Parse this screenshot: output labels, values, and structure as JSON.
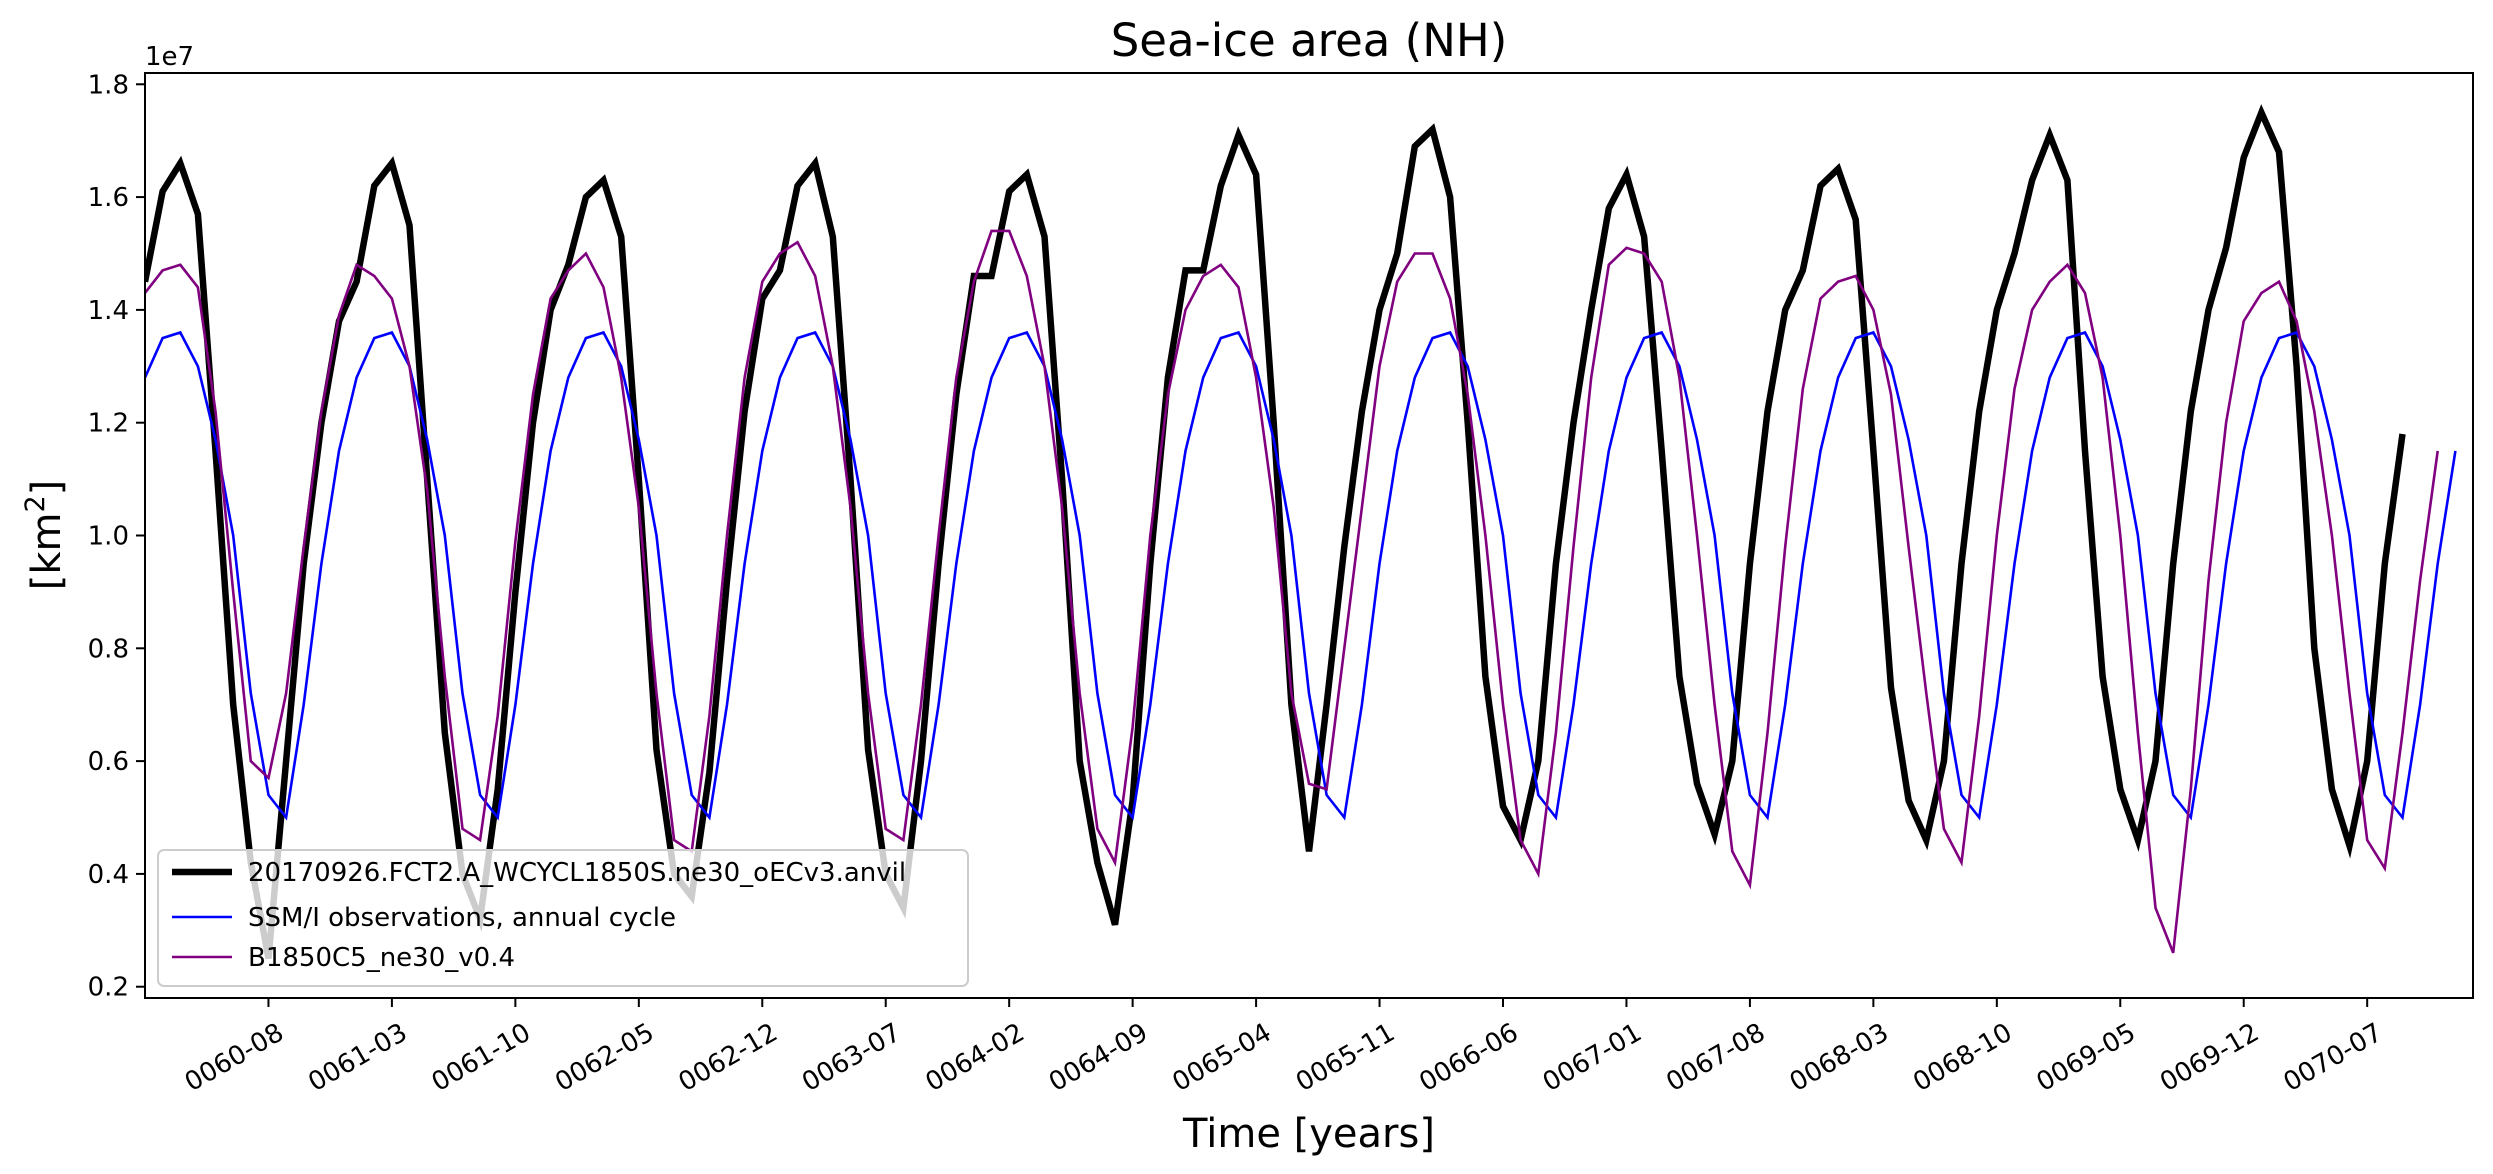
{
  "chart_data": {
    "type": "line",
    "title": "Sea-ice area (NH)",
    "xlabel": "Time [years]",
    "ylabel_main": "[km",
    "ylabel_sup": "2",
    "ylabel_close": "]",
    "offset_text": "1e7",
    "ylim": [
      0.18,
      1.82
    ],
    "y_ticks": [
      0.2,
      0.4,
      0.6,
      0.8,
      1.0,
      1.2,
      1.4,
      1.6,
      1.8
    ],
    "y_tick_labels": [
      "0.2",
      "0.4",
      "0.6",
      "0.8",
      "1.0",
      "1.2",
      "1.4",
      "1.6",
      "1.8"
    ],
    "x_start": "0060-01",
    "x_end": "0070-12",
    "x_ticks": [
      "0060-08",
      "0061-03",
      "0061-10",
      "0062-05",
      "0062-12",
      "0063-07",
      "0064-02",
      "0064-09",
      "0065-04",
      "0065-11",
      "0066-06",
      "0067-01",
      "0067-08",
      "0068-03",
      "0068-10",
      "0069-05",
      "0069-12",
      "0070-07"
    ],
    "grid": false,
    "legend_position": "lower left",
    "series": [
      {
        "name": "20170926.FCT2.A_WCYCL1850S.ne30_oECv3.anvil",
        "color": "#000000",
        "width": 6.5,
        "values": [
          [
            1.45,
            1.61,
            1.66,
            1.57,
            1.15,
            0.7,
            0.42,
            0.25,
            0.6,
            0.95,
            1.2,
            1.38
          ],
          [
            1.45,
            1.62,
            1.66,
            1.55,
            1.1,
            0.65,
            0.4,
            0.32,
            0.55,
            0.9,
            1.2,
            1.4
          ],
          [
            1.48,
            1.6,
            1.63,
            1.53,
            1.1,
            0.62,
            0.4,
            0.36,
            0.58,
            0.92,
            1.22,
            1.42
          ],
          [
            1.47,
            1.62,
            1.66,
            1.53,
            1.1,
            0.62,
            0.4,
            0.34,
            0.6,
            0.95,
            1.25,
            1.46
          ],
          [
            1.46,
            1.61,
            1.64,
            1.53,
            1.1,
            0.6,
            0.42,
            0.31,
            0.53,
            0.95,
            1.28,
            1.47
          ],
          [
            1.47,
            1.62,
            1.71,
            1.64,
            1.2,
            0.7,
            0.44,
            0.7,
            0.98,
            1.22,
            1.4,
            1.5
          ],
          [
            1.69,
            1.72,
            1.6,
            1.2,
            0.75,
            0.52,
            0.46,
            0.6,
            0.95,
            1.2,
            1.4,
            1.58
          ],
          [
            1.64,
            1.53,
            1.15,
            0.75,
            0.56,
            0.47,
            0.6,
            0.95,
            1.22,
            1.4,
            1.47,
            1.62
          ],
          [
            1.65,
            1.56,
            1.15,
            0.73,
            0.53,
            0.46,
            0.6,
            0.95,
            1.22,
            1.4,
            1.5,
            1.63
          ],
          [
            1.71,
            1.63,
            1.15,
            0.75,
            0.55,
            0.46,
            0.6,
            0.95,
            1.22,
            1.4,
            1.51,
            1.67
          ],
          [
            1.75,
            1.68,
            1.3,
            0.8,
            0.55,
            0.45,
            0.6,
            0.95,
            1.18
          ]
        ]
      },
      {
        "name": "SSM/I observations, annual cycle",
        "color": "#0000ff",
        "width": 2.6,
        "cycle": [
          1.28,
          1.35,
          1.36,
          1.3,
          1.17,
          1.0,
          0.72,
          0.54,
          0.5,
          0.7,
          0.95,
          1.15
        ]
      },
      {
        "name": "B1850C5_ne30_v0.4",
        "color": "#800080",
        "width": 2.6,
        "values": [
          [
            1.43,
            1.47,
            1.48,
            1.44,
            1.22,
            0.9,
            0.6,
            0.57,
            0.72,
            0.98,
            1.22,
            1.39
          ],
          [
            1.48,
            1.46,
            1.42,
            1.3,
            1.08,
            0.75,
            0.48,
            0.46,
            0.68,
            0.99,
            1.25,
            1.42
          ],
          [
            1.47,
            1.5,
            1.44,
            1.28,
            1.05,
            0.72,
            0.46,
            0.44,
            0.68,
            1.0,
            1.28,
            1.45
          ],
          [
            1.5,
            1.52,
            1.46,
            1.3,
            1.05,
            0.72,
            0.48,
            0.46,
            0.7,
            1.0,
            1.28,
            1.45
          ],
          [
            1.54,
            1.54,
            1.46,
            1.3,
            1.05,
            0.72,
            0.48,
            0.42,
            0.66,
            1.0,
            1.25,
            1.4
          ],
          [
            1.46,
            1.48,
            1.44,
            1.28,
            1.05,
            0.72,
            0.56,
            0.55,
            0.8,
            1.05,
            1.3,
            1.45
          ],
          [
            1.5,
            1.5,
            1.42,
            1.25,
            1.0,
            0.7,
            0.46,
            0.4,
            0.65,
            0.98,
            1.28,
            1.48
          ],
          [
            1.51,
            1.5,
            1.45,
            1.28,
            1.0,
            0.7,
            0.44,
            0.38,
            0.65,
            0.98,
            1.26,
            1.42
          ],
          [
            1.45,
            1.46,
            1.4,
            1.25,
            0.98,
            0.72,
            0.48,
            0.42,
            0.68,
            1.0,
            1.26,
            1.4
          ],
          [
            1.45,
            1.48,
            1.43,
            1.28,
            1.0,
            0.65,
            0.34,
            0.26,
            0.55,
            0.92,
            1.2,
            1.38
          ],
          [
            1.43,
            1.45,
            1.38,
            1.22,
            1.0,
            0.72,
            0.46,
            0.41,
            0.65,
            0.92,
            1.15
          ]
        ]
      }
    ]
  }
}
